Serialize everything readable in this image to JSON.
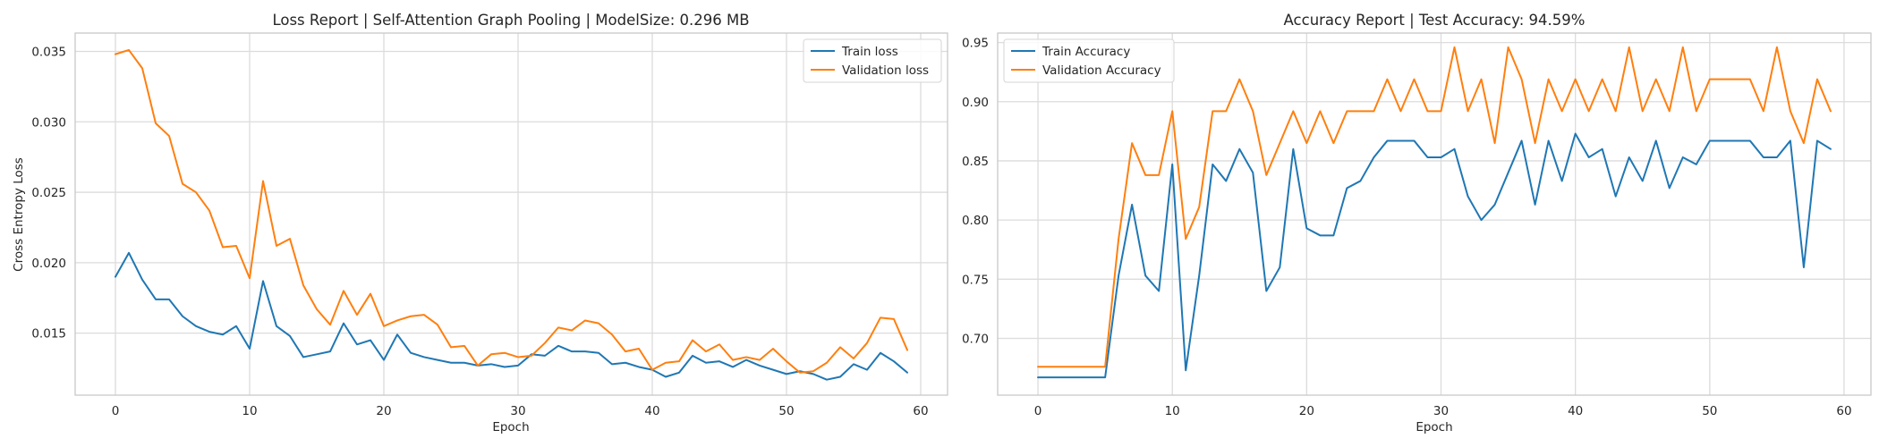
{
  "chart_data": [
    {
      "type": "line",
      "title": "Loss Report | Self-Attention Graph Pooling | ModelSize: 0.296 MB",
      "xlabel": "Epoch",
      "ylabel": "Cross Entropy Loss",
      "xlim": [
        -3,
        62
      ],
      "ylim": [
        0.0106,
        0.0363
      ],
      "xticks": [
        0,
        10,
        20,
        30,
        40,
        50,
        60
      ],
      "yticks": [
        0.015,
        0.02,
        0.025,
        0.03,
        0.035
      ],
      "ytick_labels": [
        "0.015",
        "0.020",
        "0.025",
        "0.030",
        "0.035"
      ],
      "grid": true,
      "legend_position": "top-right",
      "series": [
        {
          "name": "Train loss",
          "color": "#1f77b4",
          "values": [
            0.019,
            0.0207,
            0.0188,
            0.0174,
            0.0174,
            0.0162,
            0.0155,
            0.0151,
            0.0149,
            0.0155,
            0.0139,
            0.0187,
            0.0155,
            0.0148,
            0.0133,
            0.0135,
            0.0137,
            0.0157,
            0.0142,
            0.0145,
            0.0131,
            0.0149,
            0.0136,
            0.0133,
            0.0131,
            0.0129,
            0.0129,
            0.0127,
            0.0128,
            0.0126,
            0.0127,
            0.0135,
            0.0134,
            0.0141,
            0.0137,
            0.0137,
            0.0136,
            0.0128,
            0.0129,
            0.0126,
            0.0124,
            0.0119,
            0.0122,
            0.0134,
            0.0129,
            0.013,
            0.0126,
            0.0131,
            0.0127,
            0.0124,
            0.0121,
            0.0123,
            0.0121,
            0.0117,
            0.0119,
            0.0128,
            0.0124,
            0.0136,
            0.013,
            0.0122
          ]
        },
        {
          "name": "Validation loss",
          "color": "#ff7f0e",
          "values": [
            0.0348,
            0.0351,
            0.0338,
            0.0299,
            0.029,
            0.0256,
            0.025,
            0.0237,
            0.0211,
            0.0212,
            0.0189,
            0.0258,
            0.0212,
            0.0217,
            0.0184,
            0.0167,
            0.0156,
            0.018,
            0.0163,
            0.0178,
            0.0155,
            0.0159,
            0.0162,
            0.0163,
            0.0156,
            0.014,
            0.0141,
            0.0127,
            0.0135,
            0.0136,
            0.0133,
            0.0134,
            0.0143,
            0.0154,
            0.0152,
            0.0159,
            0.0157,
            0.0149,
            0.0137,
            0.0139,
            0.0124,
            0.0129,
            0.013,
            0.0145,
            0.0137,
            0.0142,
            0.0131,
            0.0133,
            0.0131,
            0.0139,
            0.013,
            0.0122,
            0.0123,
            0.0129,
            0.014,
            0.0132,
            0.0143,
            0.0161,
            0.016,
            0.0138
          ]
        }
      ]
    },
    {
      "type": "line",
      "title": "Accuracy Report | Test Accuracy: 94.59%",
      "xlabel": "Epoch",
      "ylabel": "",
      "xlim": [
        -3,
        62
      ],
      "ylim": [
        0.652,
        0.958
      ],
      "xticks": [
        0,
        10,
        20,
        30,
        40,
        50,
        60
      ],
      "yticks": [
        0.7,
        0.75,
        0.8,
        0.85,
        0.9,
        0.95
      ],
      "ytick_labels": [
        "0.70",
        "0.75",
        "0.80",
        "0.85",
        "0.90",
        "0.95"
      ],
      "grid": true,
      "legend_position": "top-left",
      "series": [
        {
          "name": "Train Accuracy",
          "color": "#1f77b4",
          "values": [
            0.667,
            0.667,
            0.667,
            0.667,
            0.667,
            0.667,
            0.753,
            0.813,
            0.753,
            0.74,
            0.847,
            0.673,
            0.753,
            0.847,
            0.833,
            0.86,
            0.84,
            0.74,
            0.76,
            0.86,
            0.793,
            0.787,
            0.787,
            0.827,
            0.833,
            0.853,
            0.867,
            0.867,
            0.867,
            0.853,
            0.853,
            0.86,
            0.82,
            0.8,
            0.813,
            0.84,
            0.867,
            0.813,
            0.867,
            0.833,
            0.873,
            0.853,
            0.86,
            0.82,
            0.853,
            0.833,
            0.867,
            0.827,
            0.853,
            0.847,
            0.867,
            0.867,
            0.867,
            0.867,
            0.853,
            0.853,
            0.867,
            0.76,
            0.867,
            0.86
          ]
        },
        {
          "name": "Validation Accuracy",
          "color": "#ff7f0e",
          "values": [
            0.676,
            0.676,
            0.676,
            0.676,
            0.676,
            0.676,
            0.784,
            0.865,
            0.838,
            0.838,
            0.892,
            0.784,
            0.811,
            0.892,
            0.892,
            0.919,
            0.892,
            0.838,
            0.865,
            0.892,
            0.865,
            0.892,
            0.865,
            0.892,
            0.892,
            0.892,
            0.919,
            0.892,
            0.919,
            0.892,
            0.892,
            0.946,
            0.892,
            0.919,
            0.865,
            0.946,
            0.919,
            0.865,
            0.919,
            0.892,
            0.919,
            0.892,
            0.919,
            0.892,
            0.946,
            0.892,
            0.919,
            0.892,
            0.946,
            0.892,
            0.919,
            0.919,
            0.919,
            0.919,
            0.892,
            0.946,
            0.892,
            0.865,
            0.919,
            0.892
          ]
        }
      ]
    }
  ]
}
